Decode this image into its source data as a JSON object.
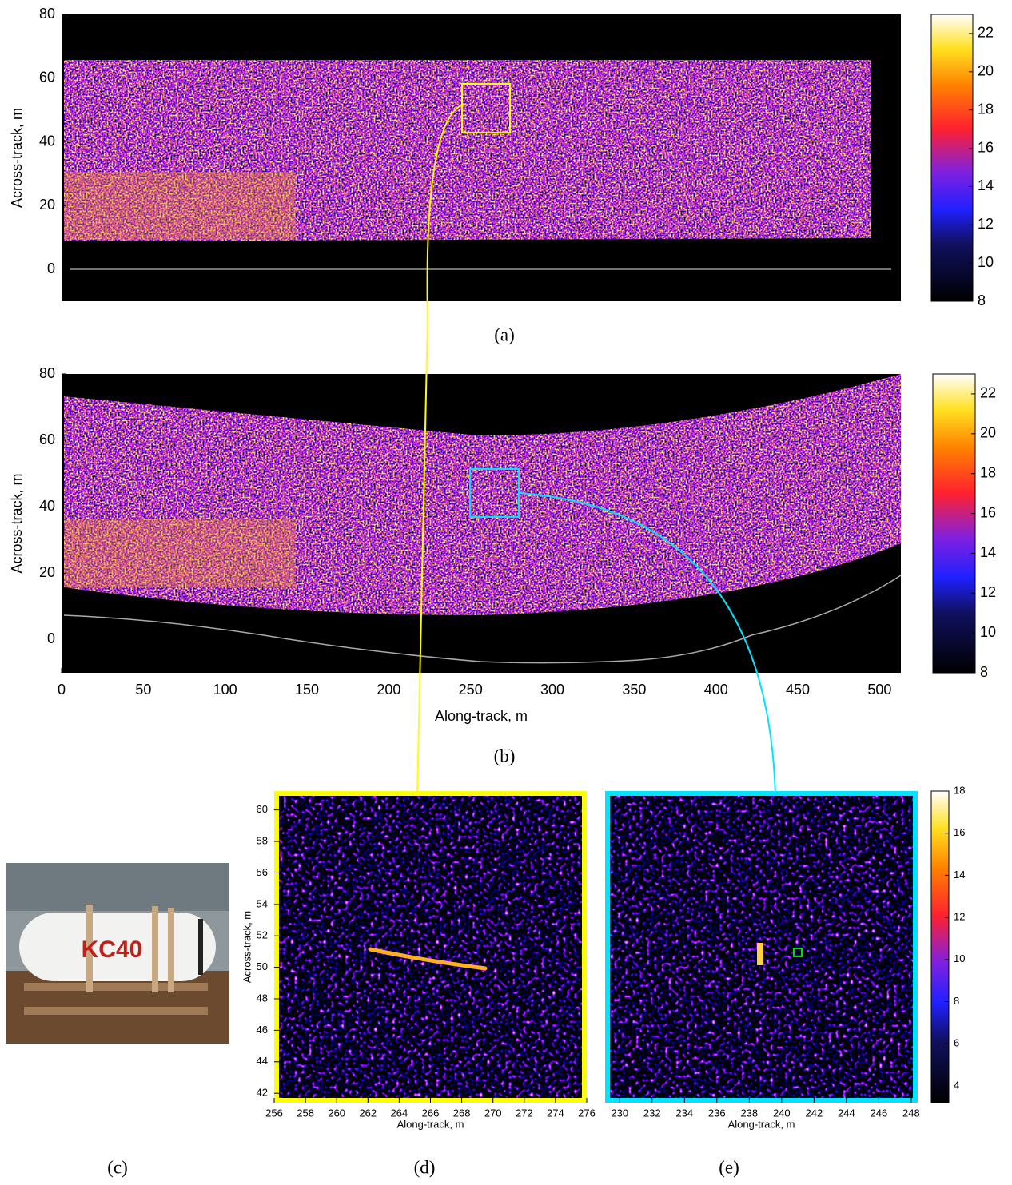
{
  "panels": [
    {
      "ylabel": "Across-track, m",
      "ylim": [
        -10,
        80
      ],
      "yticks": [
        0,
        20,
        40,
        60,
        80
      ],
      "colorbar": {
        "lim": [
          8,
          23
        ],
        "ticks": [
          8,
          10,
          12,
          14,
          16,
          18,
          20,
          22
        ]
      },
      "caption": "(a)"
    },
    {
      "ylabel": "Across-track, m",
      "xlabel": "Along-track, m",
      "xlim": [
        0,
        513
      ],
      "xticks": [
        0,
        50,
        100,
        150,
        200,
        250,
        300,
        350,
        400,
        450,
        500
      ],
      "ylim": [
        -10,
        80
      ],
      "yticks": [
        0,
        20,
        40,
        60,
        80
      ],
      "colorbar": {
        "lim": [
          8,
          23
        ],
        "ticks": [
          8,
          10,
          12,
          14,
          16,
          18,
          20,
          22
        ]
      },
      "caption": "(b)"
    },
    {
      "photo_text": "KC40",
      "caption": "(c)"
    },
    {
      "ylabel": "Across-track, m",
      "xlabel": "Along-track, m",
      "xlim": [
        256,
        276
      ],
      "xticks": [
        256,
        258,
        260,
        262,
        264,
        266,
        268,
        270,
        272,
        274,
        276
      ],
      "ylim": [
        41.4,
        61.2
      ],
      "yticks": [
        42,
        44,
        46,
        48,
        50,
        52,
        54,
        56,
        58,
        60
      ],
      "caption": "(d)"
    },
    {
      "xlabel": "Along-track, m",
      "xlim": [
        229.1,
        248.4
      ],
      "xticks": [
        230,
        232,
        234,
        236,
        238,
        240,
        242,
        244,
        246,
        248
      ],
      "colorbar": {
        "lim": [
          3.2,
          18
        ],
        "ticks": [
          4,
          6,
          8,
          10,
          12,
          14,
          16,
          18
        ]
      },
      "caption": "(e)"
    }
  ]
}
